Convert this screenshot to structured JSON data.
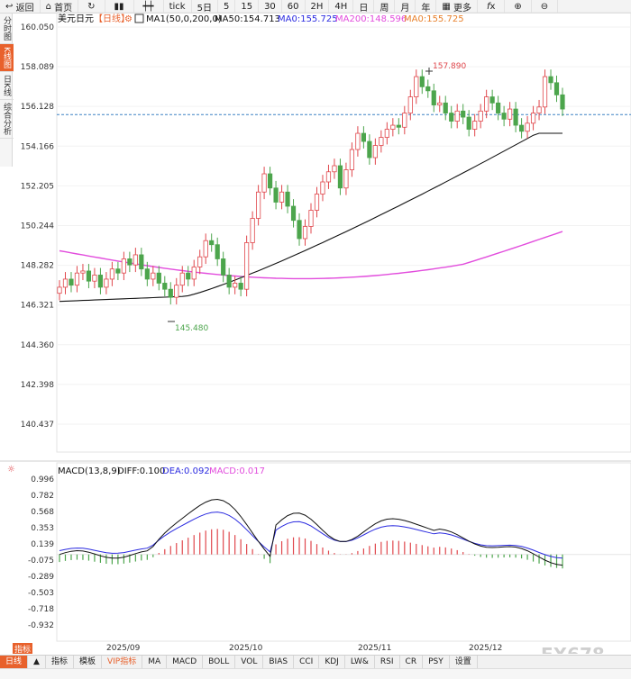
{
  "toolbar": {
    "back_label": "返回",
    "home_label": "首页",
    "period_5day": "5日",
    "period_5": "5",
    "period_15": "15",
    "period_30": "30",
    "period_60": "60",
    "period_2h": "2H",
    "period_4h": "4H",
    "period_day": "日",
    "period_week": "周",
    "period_month": "月",
    "period_year": "年",
    "more_label": "更多",
    "tick_label": "tick"
  },
  "side_tabs": [
    "分时图",
    "K线图",
    "日K线",
    "综合分析"
  ],
  "legend": {
    "symbol": "美元日元",
    "period": "【日线】",
    "ma1": "MA1(50,0,200,0)",
    "ma50": "MA50:154.713",
    "ma0a": "MA0:155.725",
    "ma200": "MA200:148.596",
    "ma0b": "MA0:155.725"
  },
  "macd_legend": {
    "title": "MACD(13,8,9)",
    "diff": "DIFF:0.100",
    "dea": "DEA:0.092",
    "macd": "MACD:0.017"
  },
  "price_axis": [
    "160.050",
    "158.089",
    "156.128",
    "154.166",
    "152.205",
    "150.244",
    "148.282",
    "146.321",
    "144.360",
    "142.398",
    "140.437"
  ],
  "macd_axis": [
    "0.996",
    "0.782",
    "0.568",
    "0.353",
    "0.139",
    "-0.075",
    "-0.289",
    "-0.503",
    "-0.718",
    "-0.932"
  ],
  "date_labels": [
    "2025/09",
    "2025/10",
    "2025/11",
    "2025/12"
  ],
  "annotations": {
    "high": "157.890",
    "low": "145.480"
  },
  "last_price": 155.725,
  "bottom_tabs": [
    "日线",
    "▲",
    "指标",
    "模板",
    "VIP指标",
    "MA",
    "MACD",
    "BOLL",
    "VOL",
    "BIAS",
    "CCI",
    "KDJ",
    "LW&",
    "RSI",
    "CR",
    "PSY",
    "设置"
  ],
  "left_corner_label": "指标",
  "watermark": "FX678",
  "colors": {
    "up": "#e0474c",
    "down": "#4ca54c",
    "ma50": "#111111",
    "ma200": "#e24ddd",
    "dea": "#2b2be0",
    "diff": "#111111",
    "accent": "#e8612c",
    "lastline": "#3b82c4"
  }
}
